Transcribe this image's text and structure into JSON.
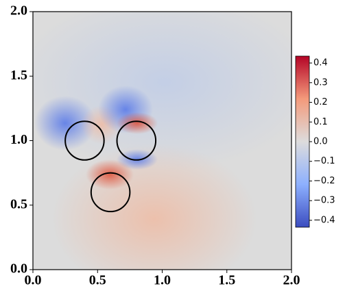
{
  "chart_data": {
    "type": "field",
    "xlim": [
      0,
      2
    ],
    "ylim": [
      0,
      2
    ],
    "xticks": [
      {
        "value": 0,
        "label": "0.0"
      },
      {
        "value": 0.5,
        "label": "0.5"
      },
      {
        "value": 1,
        "label": "1.0"
      },
      {
        "value": 1.5,
        "label": "1.5"
      },
      {
        "value": 2,
        "label": "2.0"
      }
    ],
    "yticks": [
      {
        "value": 0,
        "label": "0.0"
      },
      {
        "value": 0.5,
        "label": "0.5"
      },
      {
        "value": 1,
        "label": "1.0"
      },
      {
        "value": 1.5,
        "label": "1.5"
      },
      {
        "value": 2,
        "label": "2.0"
      }
    ],
    "circles": [
      {
        "x": 0.4,
        "y": 1.0,
        "r": 0.15
      },
      {
        "x": 0.8,
        "y": 1.0,
        "r": 0.15
      },
      {
        "x": 0.6,
        "y": 0.6,
        "r": 0.15
      }
    ],
    "circle_color": "#000000",
    "clim": [
      -0.435,
      0.435
    ],
    "colormap": [
      "#3b4cc0",
      "#8db0fe",
      "#dddcdc",
      "#f49a7b",
      "#b40426"
    ],
    "cticks": [
      {
        "value": 0.4,
        "label": "0.4"
      },
      {
        "value": 0.3,
        "label": "0.3"
      },
      {
        "value": 0.2,
        "label": "0.2"
      },
      {
        "value": 0.1,
        "label": "0.1"
      },
      {
        "value": 0,
        "label": "0.0"
      },
      {
        "value": -0.1,
        "label": "−0.1"
      },
      {
        "value": -0.2,
        "label": "−0.2"
      },
      {
        "value": -0.3,
        "label": "−0.3"
      },
      {
        "value": -0.4,
        "label": "−0.4"
      }
    ]
  }
}
